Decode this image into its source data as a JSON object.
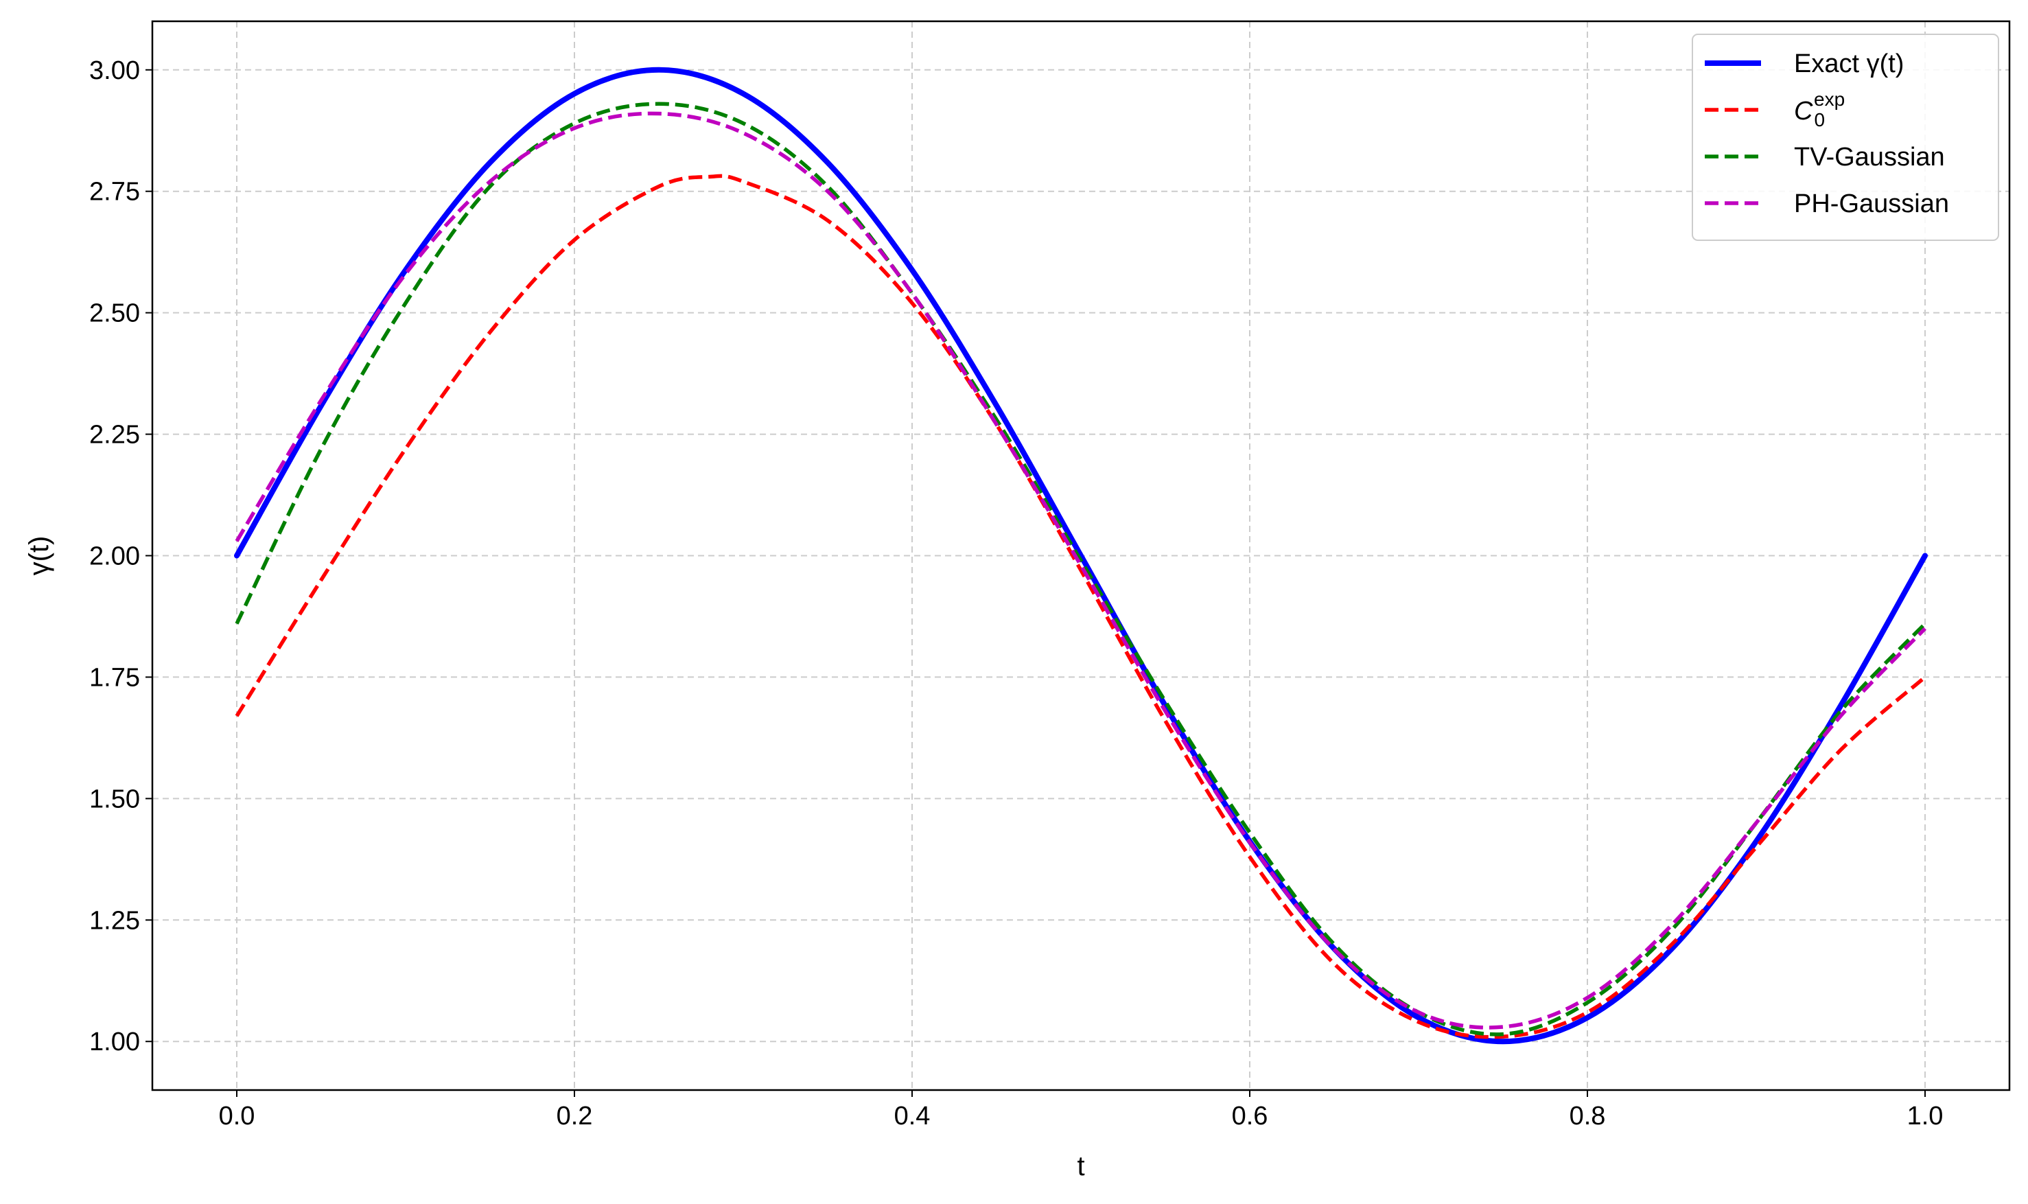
{
  "chart_data": {
    "type": "line",
    "title": "",
    "xlabel": "t",
    "ylabel": "γ(t)",
    "xlim": [
      -0.05,
      1.05
    ],
    "ylim": [
      0.9,
      3.1
    ],
    "x_ticks": [
      0.0,
      0.2,
      0.4,
      0.6,
      0.8,
      1.0
    ],
    "x_tick_labels": [
      "0.0",
      "0.2",
      "0.4",
      "0.6",
      "0.8",
      "1.0"
    ],
    "y_ticks": [
      1.0,
      1.25,
      1.5,
      1.75,
      2.0,
      2.25,
      2.5,
      2.75,
      3.0
    ],
    "y_tick_labels": [
      "1.00",
      "1.25",
      "1.50",
      "1.75",
      "2.00",
      "2.25",
      "2.50",
      "2.75",
      "3.00"
    ],
    "grid": true,
    "legend_position": "top-right",
    "series": [
      {
        "name": "Exact γ(t)",
        "color": "#0000ff",
        "style": "solid",
        "x": [
          0.0,
          0.05,
          0.1,
          0.15,
          0.2,
          0.25,
          0.3,
          0.35,
          0.4,
          0.45,
          0.5,
          0.55,
          0.6,
          0.65,
          0.7,
          0.75,
          0.8,
          0.85,
          0.9,
          0.95,
          1.0
        ],
        "y": [
          2.0,
          2.309,
          2.588,
          2.809,
          2.951,
          3.0,
          2.951,
          2.809,
          2.588,
          2.309,
          2.0,
          1.691,
          1.412,
          1.191,
          1.049,
          1.0,
          1.049,
          1.191,
          1.412,
          1.691,
          2.0
        ]
      },
      {
        "name": "C_0^exp",
        "name_base": "C",
        "name_sub": "0",
        "name_sup": "exp",
        "color": "#ff0000",
        "style": "dashed",
        "x": [
          0.0,
          0.05,
          0.1,
          0.15,
          0.2,
          0.25,
          0.28,
          0.3,
          0.35,
          0.4,
          0.45,
          0.5,
          0.55,
          0.6,
          0.65,
          0.7,
          0.75,
          0.8,
          0.85,
          0.9,
          0.95,
          1.0
        ],
        "y": [
          1.67,
          1.95,
          2.22,
          2.46,
          2.65,
          2.76,
          2.78,
          2.77,
          2.69,
          2.52,
          2.27,
          1.97,
          1.66,
          1.38,
          1.16,
          1.04,
          1.01,
          1.06,
          1.2,
          1.4,
          1.6,
          1.75
        ]
      },
      {
        "name": "TV-Gaussian",
        "color": "#008000",
        "style": "dashed",
        "x": [
          0.0,
          0.05,
          0.1,
          0.15,
          0.2,
          0.25,
          0.3,
          0.35,
          0.4,
          0.45,
          0.5,
          0.55,
          0.6,
          0.65,
          0.7,
          0.75,
          0.8,
          0.85,
          0.9,
          0.95,
          1.0
        ],
        "y": [
          1.86,
          2.22,
          2.52,
          2.76,
          2.89,
          2.93,
          2.89,
          2.76,
          2.54,
          2.28,
          1.99,
          1.7,
          1.43,
          1.2,
          1.06,
          1.015,
          1.08,
          1.23,
          1.45,
          1.68,
          1.86
        ]
      },
      {
        "name": "PH-Gaussian",
        "color": "#bf00bf",
        "style": "dashed",
        "x": [
          0.0,
          0.05,
          0.1,
          0.15,
          0.2,
          0.25,
          0.3,
          0.35,
          0.4,
          0.45,
          0.5,
          0.55,
          0.6,
          0.65,
          0.7,
          0.75,
          0.8,
          0.85,
          0.9,
          0.95,
          1.0
        ],
        "y": [
          2.03,
          2.32,
          2.58,
          2.77,
          2.88,
          2.91,
          2.87,
          2.75,
          2.54,
          2.27,
          1.98,
          1.68,
          1.41,
          1.19,
          1.06,
          1.03,
          1.09,
          1.24,
          1.45,
          1.67,
          1.85
        ]
      }
    ]
  }
}
